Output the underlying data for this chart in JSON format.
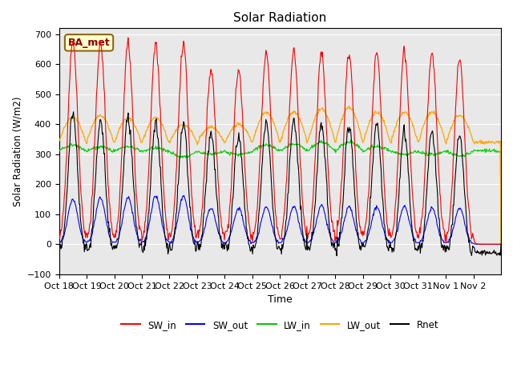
{
  "title": "Solar Radiation",
  "ylabel": "Solar Radiation (W/m2)",
  "xlabel": "Time",
  "ylim": [
    -100,
    720
  ],
  "yticks": [
    -100,
    0,
    100,
    200,
    300,
    400,
    500,
    600,
    700
  ],
  "x_tick_labels": [
    "Oct 18",
    "Oct 19",
    "Oct 20",
    "Oct 21",
    "Oct 22",
    "Oct 23",
    "Oct 24",
    "Oct 25",
    "Oct 26",
    "Oct 27",
    "Oct 28",
    "Oct 29",
    "Oct 30",
    "Oct 31",
    "Nov 1",
    "Nov 2"
  ],
  "annotation_text": "BA_met",
  "annotation_color": "#8B0000",
  "annotation_bg": "#FFFFCC",
  "annotation_edge": "#8B6914",
  "colors": {
    "SW_in": "#FF0000",
    "SW_out": "#0000FF",
    "LW_in": "#00CC00",
    "LW_out": "#FFA500",
    "Rnet": "#000000"
  },
  "background_color": "#E8E8E8",
  "n_days": 16,
  "pts_per_day": 48,
  "SW_in_peaks": [
    680,
    670,
    670,
    670,
    670,
    580,
    580,
    640,
    645,
    640,
    635,
    640,
    640,
    640,
    620,
    0
  ],
  "SW_out_peaks": [
    150,
    155,
    155,
    160,
    160,
    120,
    120,
    125,
    125,
    130,
    125,
    125,
    125,
    120,
    120,
    0
  ],
  "LW_in_base": 310,
  "LW_out_base": 340,
  "LW_in_day_offsets": [
    20,
    15,
    15,
    10,
    -20,
    -10,
    -10,
    20,
    25,
    30,
    30,
    15,
    -10,
    -10,
    -15,
    0
  ],
  "LW_out_day_offsets": [
    85,
    90,
    80,
    80,
    60,
    50,
    60,
    100,
    100,
    110,
    115,
    100,
    100,
    100,
    90,
    0
  ]
}
